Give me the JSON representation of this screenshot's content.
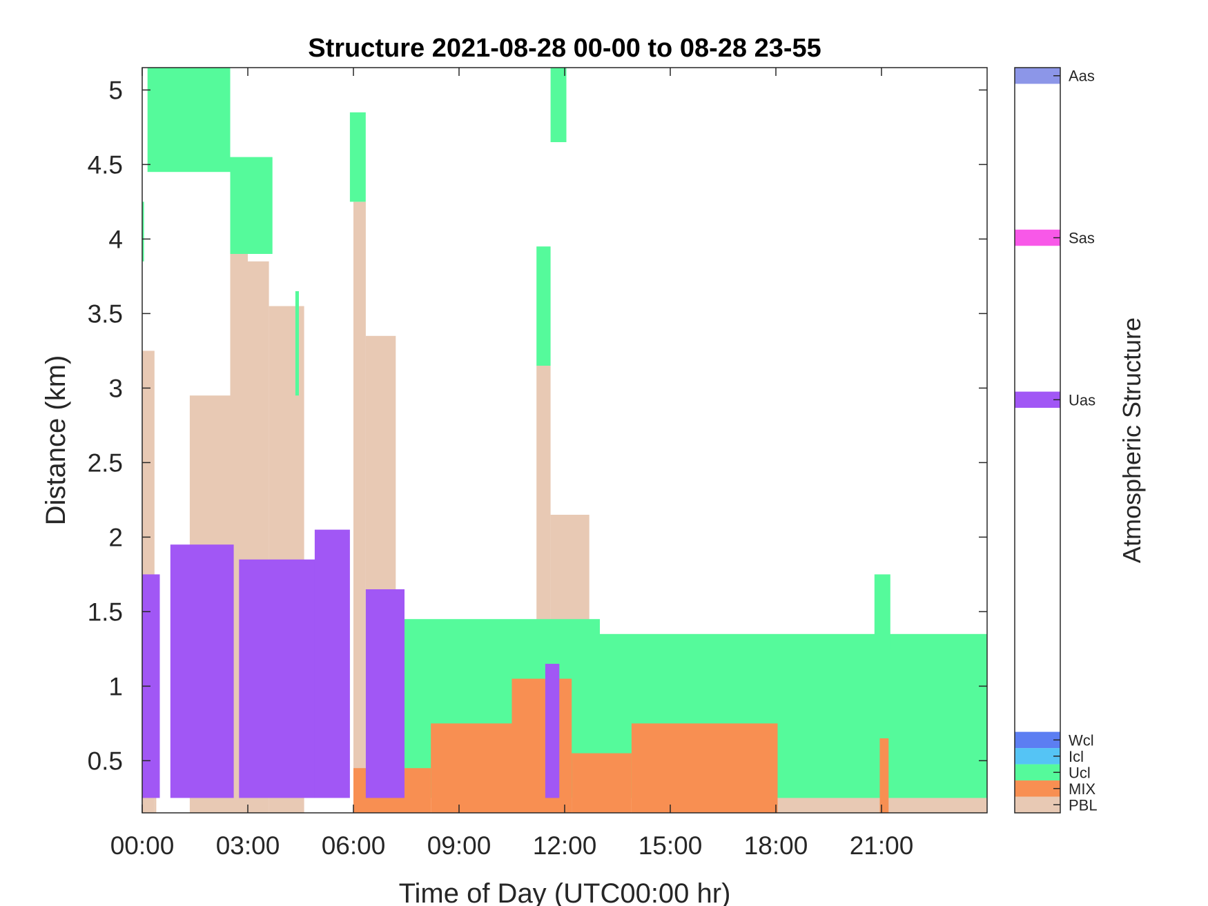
{
  "chart_data": {
    "type": "heatmap",
    "title": "Structure 2021-08-28 00-00 to 08-28 23-55",
    "xlabel": "Time of Day (UTC00:00 hr)",
    "ylabel": "Distance (km)",
    "xlim": [
      0,
      24
    ],
    "ylim": [
      0.15,
      5.15
    ],
    "x_ticks": [
      0,
      3,
      6,
      9,
      12,
      15,
      18,
      21
    ],
    "x_tick_labels": [
      "00:00",
      "03:00",
      "06:00",
      "09:00",
      "12:00",
      "15:00",
      "18:00",
      "21:00"
    ],
    "y_ticks": [
      0.5,
      1,
      1.5,
      2,
      2.5,
      3,
      3.5,
      4,
      4.5,
      5
    ],
    "y_tick_labels": [
      "0.5",
      "1",
      "1.5",
      "2",
      "2.5",
      "3",
      "3.5",
      "4",
      "4.5",
      "5"
    ],
    "colorbar": {
      "label": "Atmospheric Structure",
      "categories": [
        {
          "name": "PBL",
          "color": "#E8C9B4"
        },
        {
          "name": "MIX",
          "color": "#F88F52"
        },
        {
          "name": "Ucl",
          "color": "#55FA9B"
        },
        {
          "name": "Icl",
          "color": "#55C4F5"
        },
        {
          "name": "Wcl",
          "color": "#5C7EF2"
        },
        {
          "name": "Uas",
          "color": "#A157F5"
        },
        {
          "name": "Sas",
          "color": "#F858E8"
        },
        {
          "name": "Aas",
          "color": "#8C96E8"
        }
      ]
    },
    "regions": [
      {
        "cls": "PBL",
        "x": [
          0.0,
          0.35
        ],
        "y": [
          0.15,
          3.25
        ]
      },
      {
        "cls": "PBL",
        "x": [
          0.35,
          0.4
        ],
        "y": [
          0.15,
          1.5
        ]
      },
      {
        "cls": "PBL",
        "x": [
          1.35,
          2.5
        ],
        "y": [
          0.15,
          2.95
        ]
      },
      {
        "cls": "PBL",
        "x": [
          2.5,
          3.0
        ],
        "y": [
          0.15,
          3.9
        ]
      },
      {
        "cls": "PBL",
        "x": [
          3.0,
          3.6
        ],
        "y": [
          0.15,
          3.85
        ]
      },
      {
        "cls": "PBL",
        "x": [
          3.6,
          4.6
        ],
        "y": [
          0.15,
          3.55
        ]
      },
      {
        "cls": "PBL",
        "x": [
          6.0,
          6.35
        ],
        "y": [
          0.15,
          4.25
        ]
      },
      {
        "cls": "PBL",
        "x": [
          6.35,
          7.2
        ],
        "y": [
          0.15,
          3.35
        ]
      },
      {
        "cls": "PBL",
        "x": [
          11.2,
          11.6
        ],
        "y": [
          0.15,
          3.15
        ]
      },
      {
        "cls": "PBL",
        "x": [
          11.6,
          12.7
        ],
        "y": [
          0.15,
          2.15
        ]
      },
      {
        "cls": "PBL",
        "x": [
          18.0,
          24.0
        ],
        "y": [
          0.15,
          0.75
        ]
      },
      {
        "cls": "Ucl",
        "x": [
          0.15,
          2.5
        ],
        "y": [
          4.45,
          5.15
        ]
      },
      {
        "cls": "Ucl",
        "x": [
          2.5,
          3.7
        ],
        "y": [
          3.9,
          4.55
        ]
      },
      {
        "cls": "Ucl",
        "x": [
          0.0,
          0.05
        ],
        "y": [
          3.85,
          4.25
        ]
      },
      {
        "cls": "Ucl",
        "x": [
          5.9,
          6.35
        ],
        "y": [
          4.25,
          4.85
        ]
      },
      {
        "cls": "Ucl",
        "x": [
          11.6,
          12.05
        ],
        "y": [
          4.65,
          5.15
        ]
      },
      {
        "cls": "Ucl",
        "x": [
          4.35,
          4.45
        ],
        "y": [
          2.95,
          3.65
        ]
      },
      {
        "cls": "Ucl",
        "x": [
          11.2,
          11.6
        ],
        "y": [
          3.15,
          3.95
        ]
      },
      {
        "cls": "Ucl",
        "x": [
          7.4,
          13.0
        ],
        "y": [
          0.25,
          1.45
        ]
      },
      {
        "cls": "Ucl",
        "x": [
          13.0,
          18.0
        ],
        "y": [
          0.25,
          1.35
        ]
      },
      {
        "cls": "Ucl",
        "x": [
          18.0,
          24.0
        ],
        "y": [
          0.25,
          1.35
        ]
      },
      {
        "cls": "Ucl",
        "x": [
          20.8,
          21.25
        ],
        "y": [
          1.25,
          1.75
        ]
      },
      {
        "cls": "MIX",
        "x": [
          6.0,
          8.2
        ],
        "y": [
          0.15,
          0.45
        ]
      },
      {
        "cls": "MIX",
        "x": [
          8.2,
          10.5
        ],
        "y": [
          0.15,
          0.75
        ]
      },
      {
        "cls": "MIX",
        "x": [
          10.5,
          12.2
        ],
        "y": [
          0.15,
          1.05
        ]
      },
      {
        "cls": "MIX",
        "x": [
          12.2,
          13.9
        ],
        "y": [
          0.15,
          0.55
        ]
      },
      {
        "cls": "MIX",
        "x": [
          13.9,
          18.05
        ],
        "y": [
          0.15,
          0.75
        ]
      },
      {
        "cls": "MIX",
        "x": [
          20.95,
          21.2
        ],
        "y": [
          0.15,
          0.65
        ]
      },
      {
        "cls": "Uas",
        "x": [
          0.0,
          0.5
        ],
        "y": [
          0.25,
          1.75
        ]
      },
      {
        "cls": "Uas",
        "x": [
          0.8,
          2.6
        ],
        "y": [
          0.25,
          1.95
        ]
      },
      {
        "cls": "Uas",
        "x": [
          2.75,
          4.9
        ],
        "y": [
          0.25,
          1.85
        ]
      },
      {
        "cls": "Uas",
        "x": [
          4.9,
          5.9
        ],
        "y": [
          0.25,
          2.05
        ]
      },
      {
        "cls": "Uas",
        "x": [
          6.35,
          7.45
        ],
        "y": [
          0.25,
          1.65
        ]
      },
      {
        "cls": "Uas",
        "x": [
          11.45,
          11.85
        ],
        "y": [
          0.25,
          1.15
        ]
      }
    ]
  }
}
